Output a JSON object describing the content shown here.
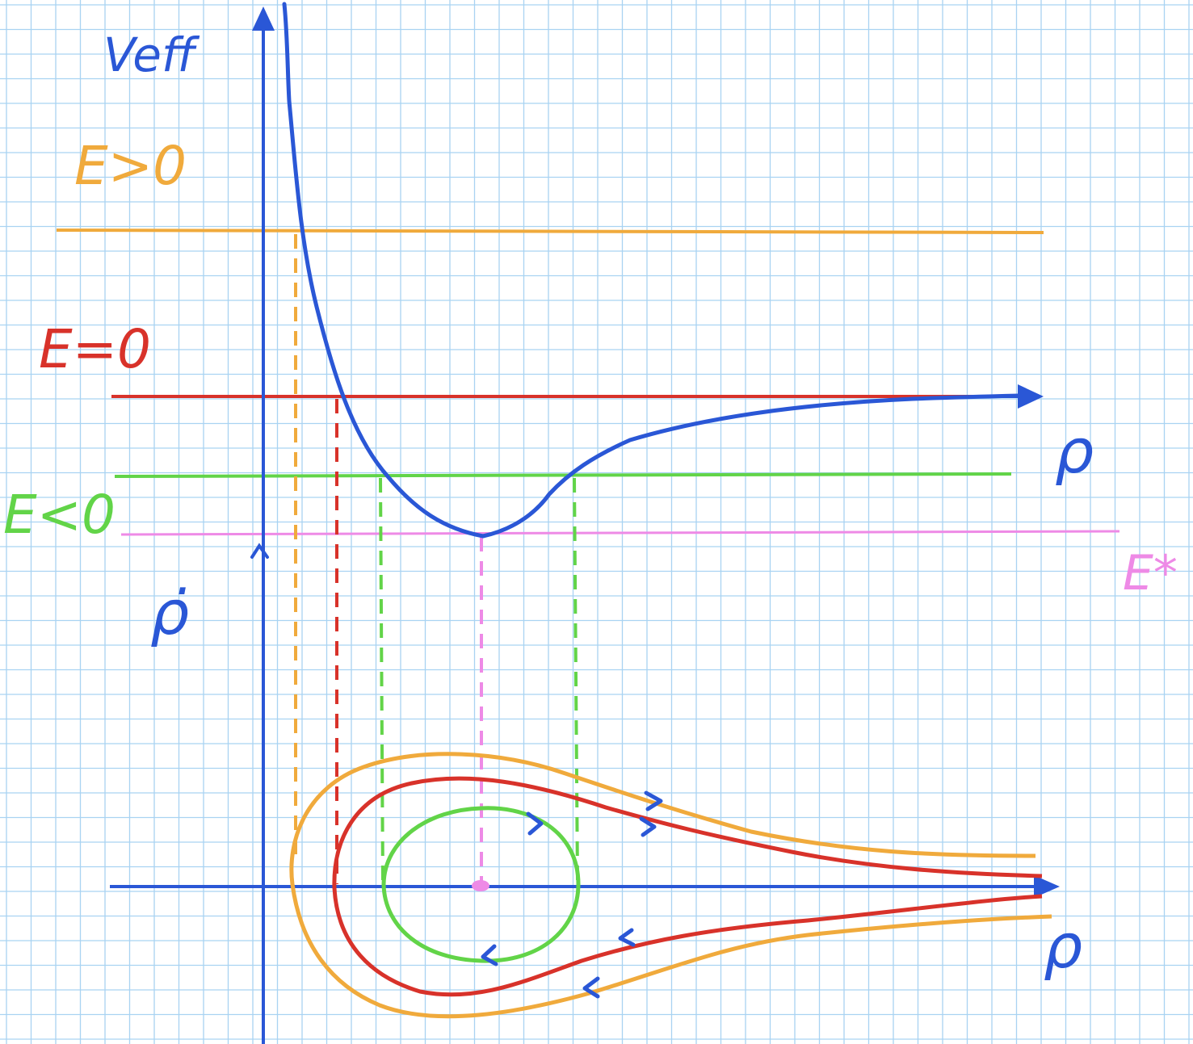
{
  "labels": {
    "potential_axis": "Veff",
    "energy_positive": "E>0",
    "energy_zero": "E=0",
    "energy_negative": "E<0",
    "energy_min": "E*",
    "radial_axis_top": "ρ",
    "velocity_axis": "ρ̇",
    "radial_axis_bottom": "ρ"
  },
  "colors": {
    "grid": "#a9d3f2",
    "axes": "#2a57d6",
    "potential": "#2a57d6",
    "energy_positive": "#f0aa3c",
    "energy_zero": "#d8322a",
    "energy_negative": "#62d448",
    "energy_min": "#ee8ae6"
  },
  "icons": {
    "axis_arrow": "arrowhead-icon",
    "flow_direction": "chevron-arrow-icon"
  }
}
